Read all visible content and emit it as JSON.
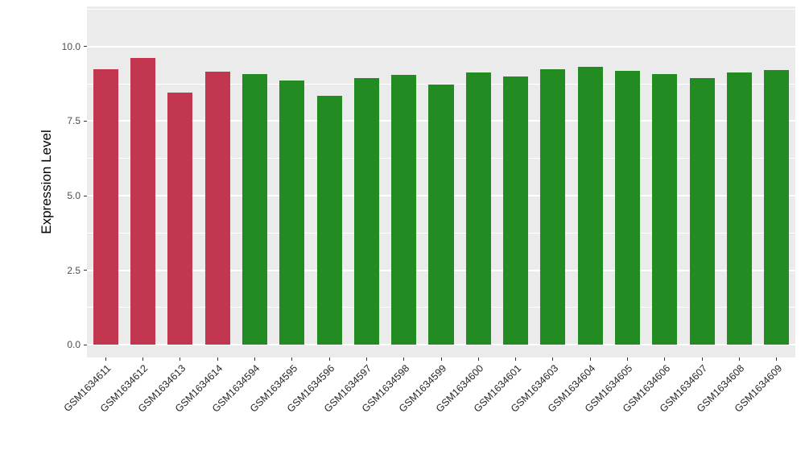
{
  "chart_data": {
    "type": "bar",
    "title": "",
    "xlabel": "",
    "ylabel": "Expression Level",
    "ylim": [
      0,
      10
    ],
    "ydomain": [
      -0.43,
      11.35
    ],
    "yticks": [
      "0.0",
      "2.5",
      "5.0",
      "7.5",
      "10.0"
    ],
    "ytick_values": [
      0,
      2.5,
      5,
      7.5,
      10
    ],
    "minor_gridlines": [
      1.25,
      3.75,
      6.25,
      8.75,
      11.25
    ],
    "grid": true,
    "legend": "none",
    "bar_width_ratio": 0.67,
    "categories": [
      "GSM1634611",
      "GSM1634612",
      "GSM1634613",
      "GSM1634614",
      "GSM1634594",
      "GSM1634595",
      "GSM1634596",
      "GSM1634597",
      "GSM1634598",
      "GSM1634599",
      "GSM1634600",
      "GSM1634601",
      "GSM1634603",
      "GSM1634604",
      "GSM1634605",
      "GSM1634606",
      "GSM1634607",
      "GSM1634608",
      "GSM1634609"
    ],
    "values": [
      9.24,
      9.62,
      8.46,
      9.16,
      9.08,
      8.86,
      8.35,
      8.95,
      9.05,
      8.73,
      9.14,
      9.0,
      9.24,
      9.32,
      9.19,
      9.08,
      8.95,
      9.14,
      9.22
    ],
    "groups": [
      "red",
      "red",
      "red",
      "red",
      "green",
      "green",
      "green",
      "green",
      "green",
      "green",
      "green",
      "green",
      "green",
      "green",
      "green",
      "green",
      "green",
      "green",
      "green"
    ],
    "group_colors": {
      "red": "#C2374F",
      "green": "#228B22"
    },
    "panel_background": "#EBEBEB",
    "gridline_color": "#FFFFFF",
    "axis_text_color": "#4D4D4D",
    "x_label_color": "#262626",
    "tick_color": "#333333"
  }
}
